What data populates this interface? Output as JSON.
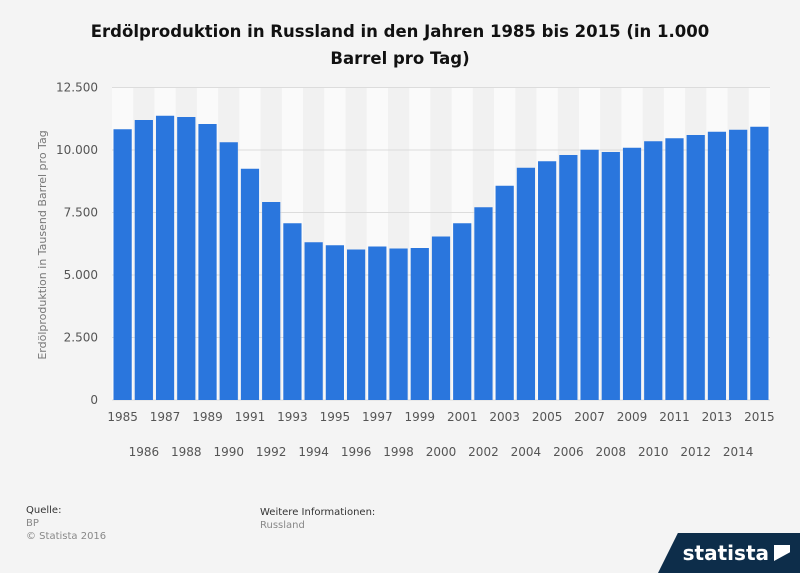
{
  "chart_data": {
    "type": "bar",
    "title": "Erdölproduktion in Russland in den Jahren 1985 bis 2015 (in 1.000 Barrel pro Tag)",
    "ylabel": "Erdölproduktion in Tausend Barrel pro Tag",
    "xlabel": "",
    "ylim": [
      0,
      12500
    ],
    "yticks": [
      "0",
      "2.500",
      "5.000",
      "7.500",
      "10.000",
      "12.500"
    ],
    "grid": true,
    "color": "#2a76dd",
    "categories": [
      "1985",
      "1986",
      "1987",
      "1988",
      "1989",
      "1990",
      "1991",
      "1992",
      "1993",
      "1994",
      "1995",
      "1996",
      "1997",
      "1998",
      "1999",
      "2000",
      "2001",
      "2002",
      "2003",
      "2004",
      "2005",
      "2006",
      "2007",
      "2008",
      "2009",
      "2010",
      "2011",
      "2012",
      "2013",
      "2014",
      "2015"
    ],
    "values": [
      10830,
      11200,
      11370,
      11320,
      11040,
      10310,
      9250,
      7920,
      7070,
      6310,
      6190,
      6020,
      6140,
      6060,
      6080,
      6540,
      7070,
      7710,
      8570,
      9290,
      9550,
      9800,
      10010,
      9920,
      10090,
      10350,
      10470,
      10600,
      10730,
      10810,
      10930
    ]
  },
  "footer": {
    "source_label": "Quelle:",
    "source": "BP",
    "copyright": "© Statista 2016",
    "info_label": "Weitere Informationen:",
    "info": "Russland",
    "logo": "statista"
  }
}
